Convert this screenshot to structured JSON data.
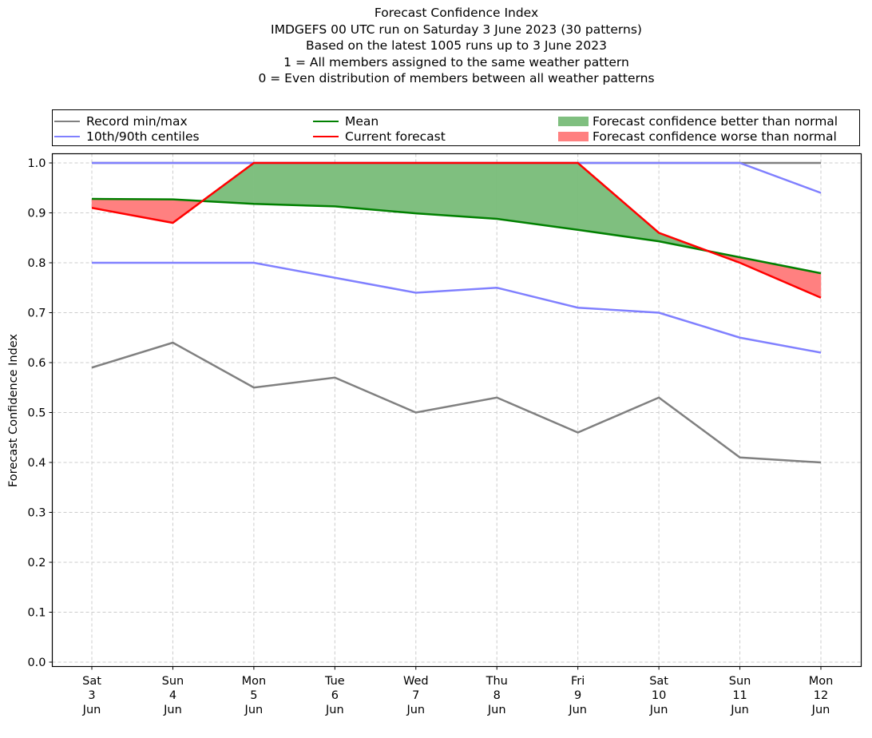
{
  "chart_data": {
    "type": "line",
    "title": "Forecast Confidence Index",
    "subtitles": [
      "IMDGEFS 00 UTC run on Saturday 3 June 2023 (30 patterns)",
      "Based on the latest 1005 runs up to 3 June 2023",
      "1 = All members assigned to the same weather pattern",
      "0 = Even distribution of members between all weather patterns"
    ],
    "xlabel": "",
    "ylabel": "Forecast Confidence Index",
    "ylim": [
      -0.01,
      1.01
    ],
    "yticks": [
      "0.0",
      "0.1",
      "0.2",
      "0.3",
      "0.4",
      "0.5",
      "0.6",
      "0.7",
      "0.8",
      "0.9",
      "1.0"
    ],
    "ytick_values": [
      0.0,
      0.1,
      0.2,
      0.3,
      0.4,
      0.5,
      0.6,
      0.7,
      0.8,
      0.9,
      1.0
    ],
    "categories": [
      [
        "Sat",
        "3",
        "Jun"
      ],
      [
        "Sun",
        "4",
        "Jun"
      ],
      [
        "Mon",
        "5",
        "Jun"
      ],
      [
        "Tue",
        "6",
        "Jun"
      ],
      [
        "Wed",
        "7",
        "Jun"
      ],
      [
        "Thu",
        "8",
        "Jun"
      ],
      [
        "Fri",
        "9",
        "Jun"
      ],
      [
        "Sat",
        "10",
        "Jun"
      ],
      [
        "Sun",
        "11",
        "Jun"
      ],
      [
        "Mon",
        "12",
        "Jun"
      ]
    ],
    "grid": true,
    "legend_placement": "top, above plot, 3 columns",
    "series": [
      {
        "name": "Record max",
        "legend": "Record min/max",
        "color": "#808080",
        "values": [
          1.0,
          1.0,
          1.0,
          1.0,
          1.0,
          1.0,
          1.0,
          1.0,
          1.0,
          1.0
        ]
      },
      {
        "name": "Record min",
        "legend": "Record min/max",
        "color": "#808080",
        "values": [
          0.59,
          0.64,
          0.55,
          0.57,
          0.5,
          0.53,
          0.46,
          0.53,
          0.41,
          0.4
        ]
      },
      {
        "name": "90th centile",
        "legend": "10th/90th centiles",
        "color": "#8080ff",
        "values": [
          1.0,
          1.0,
          1.0,
          1.0,
          1.0,
          1.0,
          1.0,
          1.0,
          1.0,
          0.94
        ]
      },
      {
        "name": "10th centile",
        "legend": "10th/90th centiles",
        "color": "#8080ff",
        "values": [
          0.8,
          0.8,
          0.8,
          0.77,
          0.74,
          0.75,
          0.71,
          0.7,
          0.65,
          0.62
        ]
      },
      {
        "name": "Mean",
        "legend": "Mean",
        "color": "#008000",
        "values": [
          0.928,
          0.927,
          0.918,
          0.913,
          0.899,
          0.888,
          0.866,
          0.843,
          0.811,
          0.779
        ]
      },
      {
        "name": "Current forecast",
        "legend": "Current forecast",
        "color": "#ff0000",
        "values": [
          0.91,
          0.88,
          1.0,
          1.0,
          1.0,
          1.0,
          1.0,
          0.86,
          0.8,
          0.73
        ]
      }
    ],
    "fills": [
      {
        "legend": "Forecast confidence better than normal",
        "color": "#7fbf7f",
        "condition": "current > mean"
      },
      {
        "legend": "Forecast confidence worse than normal",
        "color": "#ff8080",
        "condition": "current < mean"
      }
    ]
  },
  "legend": {
    "record": {
      "label": "Record min/max",
      "color": "#808080"
    },
    "centiles": {
      "label": "10th/90th centiles",
      "color": "#8080ff"
    },
    "mean": {
      "label": "Mean",
      "color": "#008000"
    },
    "current": {
      "label": "Current forecast",
      "color": "#ff0000"
    },
    "better": {
      "label": "Forecast confidence better than normal",
      "color": "#7fbf7f"
    },
    "worse": {
      "label": "Forecast confidence worse than normal",
      "color": "#ff8080"
    }
  }
}
